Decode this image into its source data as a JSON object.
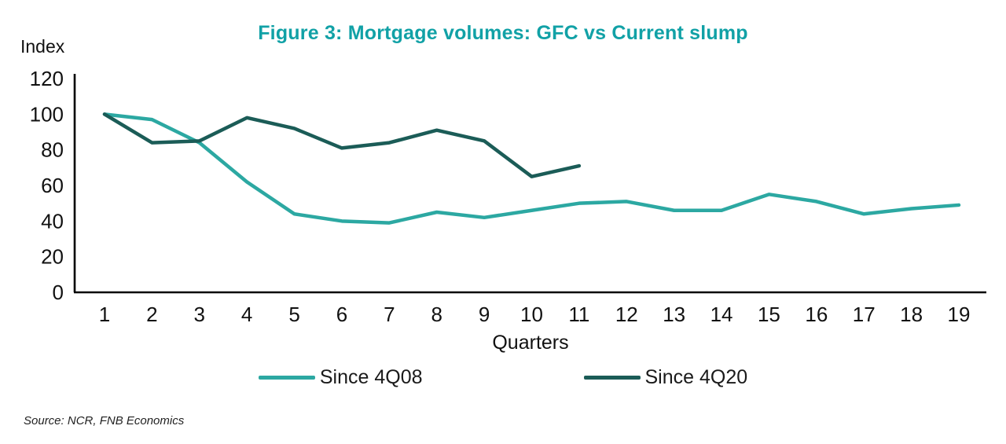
{
  "figure": {
    "title": "Figure 3: Mortgage volumes: GFC vs Current slump",
    "title_color": "#11A1A6",
    "source": "Source: NCR, FNB Economics"
  },
  "chart_data": {
    "type": "line",
    "title": "Figure 3: Mortgage volumes: GFC vs Current slump",
    "x": [
      1,
      2,
      3,
      4,
      5,
      6,
      7,
      8,
      9,
      10,
      11,
      12,
      13,
      14,
      15,
      16,
      17,
      18,
      19
    ],
    "xlabel": "Quarters",
    "ylabel": "Index",
    "ylim": [
      0,
      120
    ],
    "yticks": [
      0,
      20,
      40,
      60,
      80,
      100,
      120
    ],
    "grid": false,
    "legend_position": "bottom",
    "series": [
      {
        "name": "Since 4Q08",
        "color": "#2CA8A2",
        "values": [
          100,
          97,
          84,
          62,
          44,
          40,
          39,
          45,
          42,
          46,
          50,
          51,
          46,
          46,
          55,
          51,
          44,
          47,
          49
        ]
      },
      {
        "name": "Since 4Q20",
        "color": "#1B5C57",
        "values": [
          100,
          84,
          85,
          98,
          92,
          81,
          84,
          91,
          85,
          65,
          71
        ]
      }
    ]
  }
}
